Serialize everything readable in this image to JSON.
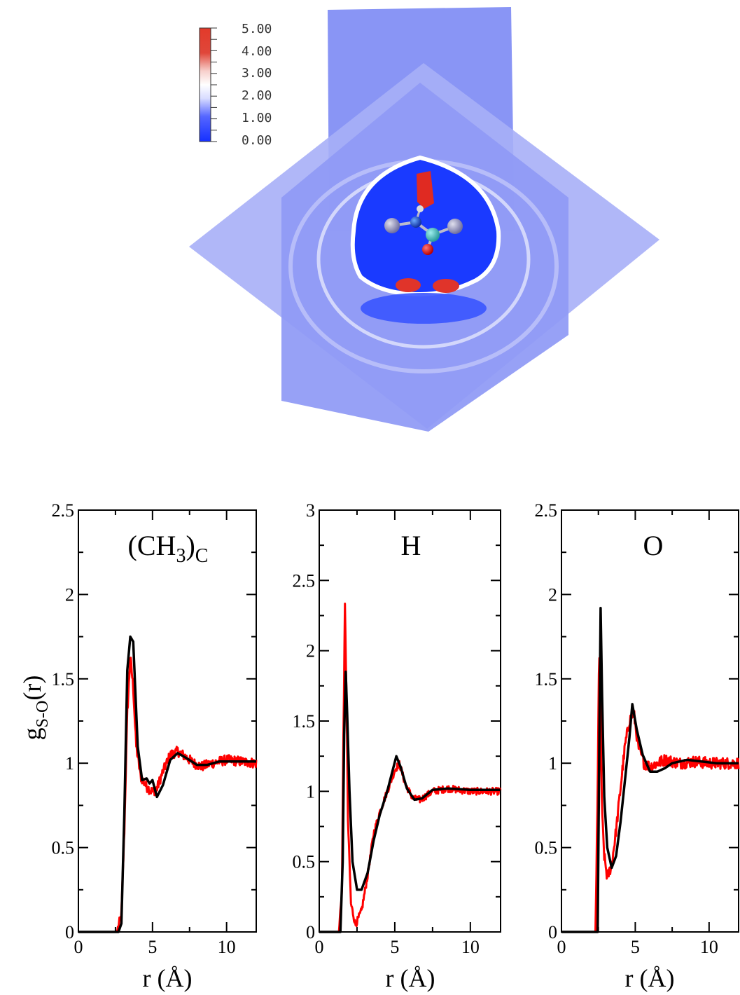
{
  "colorbar": {
    "labels": [
      "5.00",
      "4.00",
      "3.00",
      "2.00",
      "1.00",
      "0.00"
    ],
    "colors": [
      "#e23a2a",
      "#ffffff",
      "#1530ff"
    ]
  },
  "plane_color": "#8a95f5",
  "molecule": {
    "atoms": [
      "methyl-left",
      "carbon",
      "methyl-right",
      "hydrogen",
      "oxygen"
    ],
    "colors": {
      "methyl": "#8888aa",
      "carbon": "#2a7fbf",
      "center": "#3bb8b8",
      "oxygen": "#dd1111",
      "hydrogen": "#dddddd"
    }
  },
  "ylabel": "g",
  "ylabel_sub": "S-O",
  "ylabel_tail": "(r)",
  "series_colors": {
    "red": "#ff0000",
    "black": "#000000"
  },
  "chart_data": [
    {
      "type": "line",
      "title_main": "(CH",
      "title_sub1": "3",
      "title_mid": ")",
      "title_sub2": "C",
      "xlabel": "r (Å)",
      "xlim": [
        0,
        12
      ],
      "ylim": [
        0,
        2.5
      ],
      "xticks": [
        "0",
        "5",
        "10"
      ],
      "yticks": [
        "0",
        "0.5",
        "1",
        "1.5",
        "2",
        "2.5"
      ],
      "ytick_values": [
        0,
        0.5,
        1,
        1.5,
        2,
        2.5
      ],
      "series": [
        {
          "color": "red",
          "noise": 0.03,
          "x": [
            0,
            2.6,
            2.9,
            3.1,
            3.3,
            3.5,
            3.7,
            3.9,
            4.2,
            4.6,
            5.0,
            5.3,
            5.7,
            6.2,
            6.7,
            7.2,
            7.8,
            8.3,
            9.0,
            10.0,
            11.0,
            12.0
          ],
          "y": [
            0,
            0,
            0.1,
            0.6,
            1.3,
            1.63,
            1.45,
            1.1,
            0.92,
            0.86,
            0.83,
            0.85,
            0.95,
            1.05,
            1.07,
            1.04,
            1.0,
            0.98,
            1.0,
            1.02,
            1.01,
            1.0
          ]
        },
        {
          "color": "black",
          "noise": 0,
          "x": [
            0,
            2.7,
            2.9,
            3.1,
            3.3,
            3.5,
            3.7,
            4.0,
            4.3,
            4.6,
            4.8,
            5.0,
            5.3,
            5.7,
            6.2,
            6.7,
            7.3,
            8.0,
            8.7,
            9.5,
            10.5,
            12.0
          ],
          "y": [
            0,
            0,
            0.05,
            0.7,
            1.55,
            1.75,
            1.72,
            1.1,
            0.9,
            0.91,
            0.88,
            0.9,
            0.8,
            0.87,
            1.02,
            1.06,
            1.03,
            0.99,
            0.99,
            1.01,
            1.01,
            1.01
          ]
        }
      ]
    },
    {
      "type": "line",
      "title_main": "H",
      "xlabel": "r (Å)",
      "xlim": [
        0,
        12
      ],
      "ylim": [
        0,
        3
      ],
      "xticks": [
        "0",
        "5",
        "10"
      ],
      "yticks": [
        "0",
        "0.5",
        "1",
        "1.5",
        "2",
        "2.5",
        "3"
      ],
      "ytick_values": [
        0,
        0.5,
        1,
        1.5,
        2,
        2.5,
        3
      ],
      "series": [
        {
          "color": "red",
          "noise": 0.025,
          "x": [
            0,
            1.3,
            1.5,
            1.6,
            1.7,
            1.8,
            1.9,
            2.1,
            2.4,
            2.8,
            3.2,
            3.6,
            4.0,
            4.5,
            5.0,
            5.3,
            5.7,
            6.2,
            6.7,
            7.5,
            8.5,
            10.0,
            12.0
          ],
          "y": [
            0,
            0,
            0.3,
            1.4,
            2.32,
            1.7,
            0.8,
            0.2,
            0.05,
            0.15,
            0.4,
            0.7,
            0.85,
            1.0,
            1.15,
            1.2,
            1.05,
            0.95,
            0.94,
            1.0,
            1.02,
            1.0,
            1.0
          ]
        },
        {
          "color": "black",
          "noise": 0,
          "x": [
            0,
            1.4,
            1.55,
            1.65,
            1.75,
            1.85,
            2.0,
            2.2,
            2.5,
            2.8,
            3.2,
            3.6,
            4.0,
            4.5,
            5.1,
            5.4,
            5.8,
            6.3,
            6.8,
            7.5,
            8.5,
            10.0,
            12.0
          ],
          "y": [
            0,
            0,
            0.5,
            1.4,
            1.85,
            1.55,
            1.0,
            0.5,
            0.3,
            0.3,
            0.42,
            0.65,
            0.83,
            1.0,
            1.25,
            1.17,
            1.02,
            0.94,
            0.95,
            1.01,
            1.02,
            1.01,
            1.01
          ]
        }
      ]
    },
    {
      "type": "line",
      "title_main": "O",
      "xlabel": "r (Å)",
      "xlim": [
        0,
        12
      ],
      "ylim": [
        0,
        2.5
      ],
      "xticks": [
        "0",
        "5",
        "10"
      ],
      "yticks": [
        "0",
        "0.5",
        "1",
        "1.5",
        "2",
        "2.5"
      ],
      "ytick_values": [
        0,
        0.5,
        1,
        1.5,
        2,
        2.5
      ],
      "series": [
        {
          "color": "red",
          "noise": 0.035,
          "x": [
            0,
            2.3,
            2.45,
            2.55,
            2.65,
            2.75,
            2.9,
            3.1,
            3.4,
            3.7,
            4.0,
            4.3,
            4.6,
            4.9,
            5.2,
            5.6,
            6.0,
            6.5,
            7.0,
            8.0,
            9.0,
            10.0,
            12.0
          ],
          "y": [
            0,
            0,
            0.8,
            1.7,
            1.3,
            0.7,
            0.45,
            0.32,
            0.4,
            0.6,
            0.85,
            1.1,
            1.25,
            1.3,
            1.1,
            1.0,
            0.98,
            1.0,
            1.02,
            1.0,
            1.01,
            1.0,
            1.0
          ]
        },
        {
          "color": "black",
          "noise": 0,
          "x": [
            0,
            2.45,
            2.55,
            2.65,
            2.75,
            2.9,
            3.1,
            3.4,
            3.7,
            4.0,
            4.3,
            4.6,
            4.8,
            5.1,
            5.5,
            6.0,
            6.5,
            7.0,
            7.5,
            8.5,
            9.5,
            10.5,
            12.0
          ],
          "y": [
            0,
            0,
            1.0,
            1.92,
            1.4,
            0.8,
            0.5,
            0.38,
            0.45,
            0.65,
            0.9,
            1.15,
            1.35,
            1.2,
            1.05,
            0.95,
            0.95,
            0.97,
            1.0,
            1.02,
            1.01,
            1.0,
            1.0
          ]
        }
      ]
    }
  ]
}
